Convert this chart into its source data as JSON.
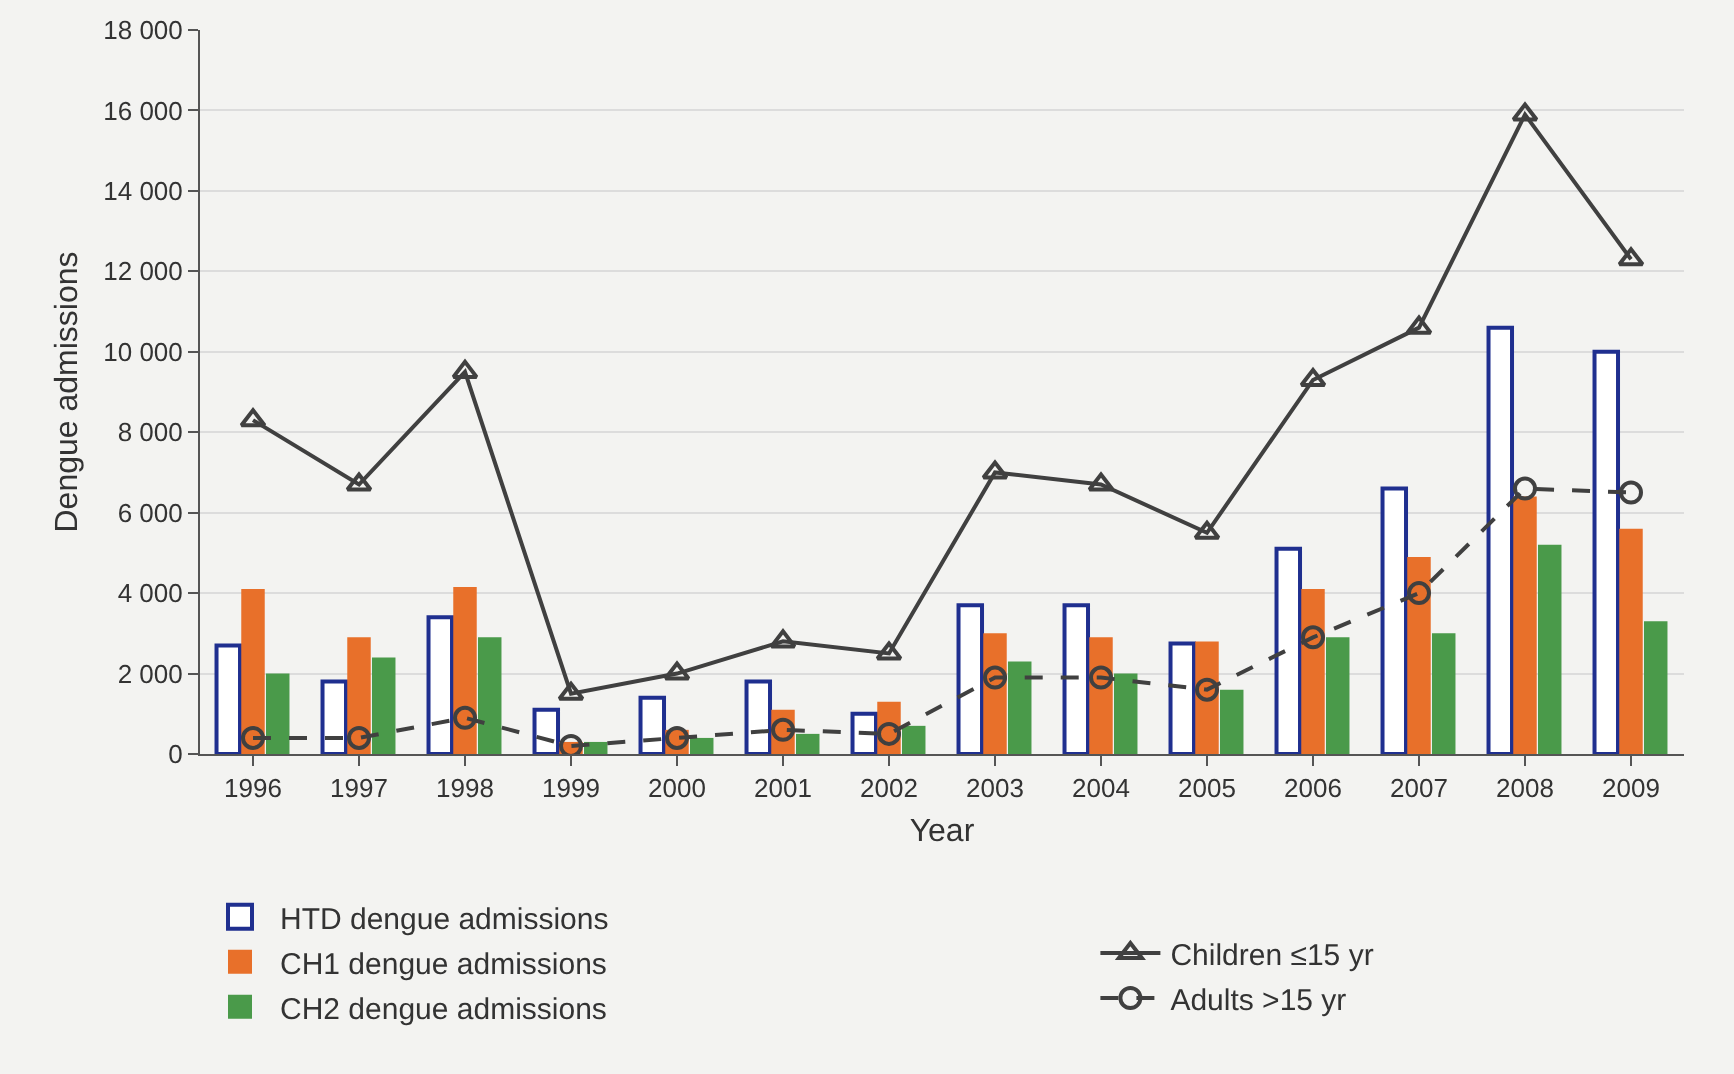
{
  "chart_data": {
    "type": "bar",
    "xlabel": "Year",
    "ylabel": "Dengue admissions",
    "categories": [
      "1996",
      "1997",
      "1998",
      "1999",
      "2000",
      "2001",
      "2002",
      "2003",
      "2004",
      "2005",
      "2006",
      "2007",
      "2008",
      "2009"
    ],
    "series": [
      {
        "name": "HTD dengue admissions",
        "color": "#1f2f8f",
        "values": [
          2700,
          1800,
          3400,
          1100,
          1400,
          1800,
          1000,
          3700,
          3700,
          2750,
          5100,
          6600,
          10600,
          10000
        ]
      },
      {
        "name": "CH1 dengue admissions",
        "color": "#e8702a",
        "values": [
          4100,
          2900,
          4150,
          300,
          600,
          1100,
          1300,
          3000,
          2900,
          2800,
          4100,
          4900,
          6400,
          5600
        ]
      },
      {
        "name": "CH2 dengue admissions",
        "color": "#4a9a4a",
        "values": [
          2000,
          2400,
          2900,
          300,
          400,
          500,
          700,
          2300,
          2000,
          1600,
          2900,
          3000,
          5200,
          3300
        ]
      },
      {
        "name": "Children ≤15 yr",
        "type": "line",
        "color": "#404040",
        "marker": "triangle",
        "line_style": "solid",
        "values": [
          8300,
          6700,
          9500,
          1500,
          2000,
          2800,
          2500,
          7000,
          6700,
          5500,
          9300,
          10600,
          15900,
          12300
        ]
      },
      {
        "name": "Adults >15 yr",
        "type": "line",
        "color": "#404040",
        "marker": "circle",
        "line_style": "dashed",
        "values": [
          400,
          400,
          900,
          200,
          400,
          600,
          500,
          1900,
          1900,
          1600,
          2900,
          4000,
          6600,
          6500
        ]
      }
    ],
    "ylim": [
      0,
      18000
    ],
    "yticks": [
      0,
      {
        "value": 2000,
        "label": "2 000"
      },
      {
        "value": 4000,
        "label": "4 000"
      },
      {
        "value": 6000,
        "label": "6 000"
      },
      {
        "value": 8000,
        "label": "8 000"
      },
      {
        "value": 10000,
        "label": "10 000"
      },
      {
        "value": 12000,
        "label": "12 000"
      },
      {
        "value": 14000,
        "label": "14 000"
      },
      {
        "value": 16000,
        "label": "16 000"
      },
      {
        "value": 18000,
        "label": "18 000"
      }
    ],
    "grid": "y",
    "legend": "bottom"
  }
}
